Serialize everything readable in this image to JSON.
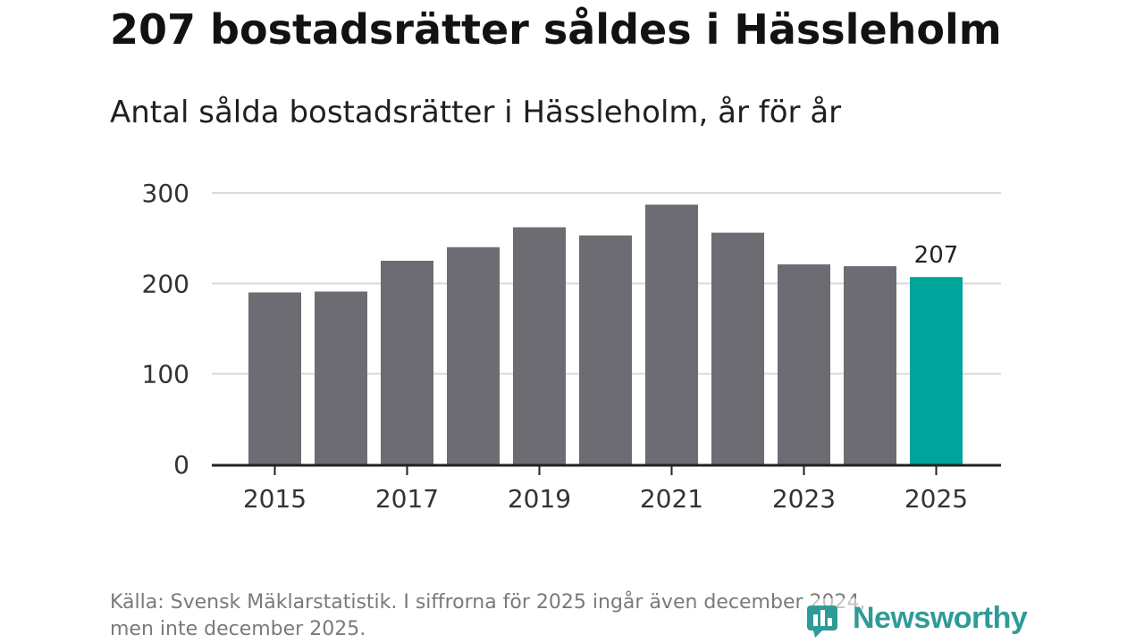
{
  "header": {
    "title": "207 bostadsrätter såldes i Hässleholm",
    "subtitle": "Antal sålda bostadsrätter i Hässleholm, år för år"
  },
  "chart_data": {
    "type": "bar",
    "categories": [
      "2015",
      "2016",
      "2017",
      "2018",
      "2019",
      "2020",
      "2021",
      "2022",
      "2023",
      "2024",
      "2025"
    ],
    "values": [
      190,
      191,
      225,
      240,
      262,
      253,
      287,
      256,
      221,
      219,
      207
    ],
    "x_tick_labels": [
      "2015",
      "2017",
      "2019",
      "2021",
      "2023",
      "2025"
    ],
    "y_ticks": [
      0,
      100,
      200,
      300
    ],
    "ylim": [
      0,
      300
    ],
    "highlight_index": 10,
    "data_labels": [
      {
        "index": 10,
        "text": "207"
      }
    ],
    "colors": {
      "bar": "#6d6c72",
      "highlight": "#00a49a",
      "grid": "#d9d9d9",
      "axis": "#222222"
    }
  },
  "footer": {
    "source_line1": "Källa: Svensk Mäklarstatistik. I siffrorna för 2025 ingår även december 2024,",
    "source_line2": "men inte december 2025.",
    "logo_text": "Newsworthy"
  }
}
